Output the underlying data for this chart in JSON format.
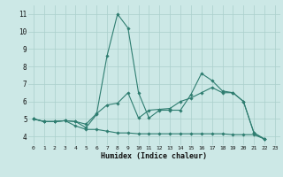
{
  "title": "",
  "xlabel": "Humidex (Indice chaleur)",
  "background_color": "#cce8e6",
  "line_color": "#2e7d70",
  "grid_color": "#aacfcc",
  "xlim": [
    -0.5,
    23.5
  ],
  "ylim": [
    3.5,
    11.5
  ],
  "xticks": [
    0,
    1,
    2,
    3,
    4,
    5,
    6,
    7,
    8,
    9,
    10,
    11,
    12,
    13,
    14,
    15,
    16,
    17,
    18,
    19,
    20,
    21,
    22,
    23
  ],
  "yticks": [
    4,
    5,
    6,
    7,
    8,
    9,
    10,
    11
  ],
  "lines": [
    {
      "x": [
        0,
        1,
        2,
        3,
        4,
        5,
        6,
        7,
        8,
        9,
        10,
        11,
        12,
        13,
        14,
        15,
        16,
        17,
        18,
        19,
        20,
        21,
        22,
        23
      ],
      "y": [
        5.0,
        4.85,
        4.85,
        4.9,
        4.85,
        4.5,
        5.25,
        8.6,
        11.0,
        10.2,
        6.5,
        5.05,
        5.5,
        5.5,
        5.5,
        6.4,
        7.6,
        7.2,
        6.6,
        6.5,
        6.0,
        4.2,
        3.85,
        null
      ]
    },
    {
      "x": [
        0,
        1,
        2,
        3,
        4,
        5,
        6,
        7,
        8,
        9,
        10,
        11,
        12,
        13,
        14,
        15,
        16,
        17,
        18,
        19,
        20,
        21,
        22,
        23
      ],
      "y": [
        5.0,
        4.85,
        4.85,
        4.9,
        4.85,
        4.7,
        5.3,
        5.8,
        5.9,
        6.5,
        5.05,
        5.5,
        5.55,
        5.6,
        6.0,
        6.2,
        6.5,
        6.8,
        6.5,
        6.5,
        6.0,
        4.2,
        3.85,
        null
      ]
    },
    {
      "x": [
        0,
        1,
        2,
        3,
        4,
        5,
        6,
        7,
        8,
        9,
        10,
        11,
        12,
        13,
        14,
        15,
        16,
        17,
        18,
        19,
        20,
        21,
        22,
        23
      ],
      "y": [
        5.0,
        4.85,
        4.85,
        4.9,
        4.6,
        4.4,
        4.4,
        4.3,
        4.2,
        4.2,
        4.15,
        4.15,
        4.15,
        4.15,
        4.15,
        4.15,
        4.15,
        4.15,
        4.15,
        4.1,
        4.1,
        4.1,
        3.85,
        null
      ]
    }
  ]
}
